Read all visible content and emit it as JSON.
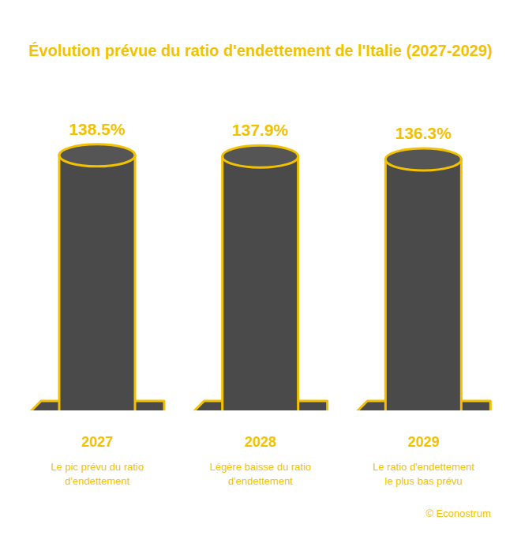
{
  "chart_data": {
    "type": "bar",
    "title": "Évolution prévue du ratio d'endettement de l'Italie (2027-2029)",
    "categories": [
      "2027",
      "2028",
      "2029"
    ],
    "values": [
      138.5,
      137.9,
      136.3
    ],
    "value_labels": [
      "138.5%",
      "137.9%",
      "136.3%"
    ],
    "annotations": [
      "Le pic prévu du ratio d'endettement",
      "Légère baisse du ratio d'endettement",
      "Le ratio d'endettement le plus bas prévu"
    ],
    "source": "© Econostrum",
    "color": "#4a4a4a",
    "ylim": [
      0,
      150
    ],
    "tick_labels": false,
    "data_labels": true,
    "grid": false
  }
}
